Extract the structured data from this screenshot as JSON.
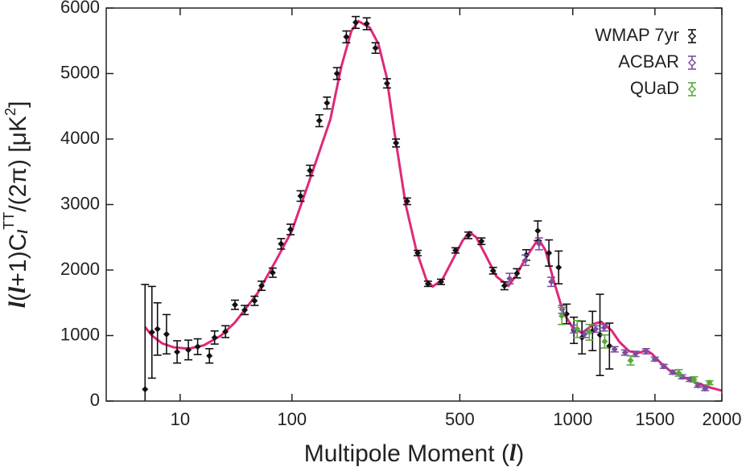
{
  "chart_data": {
    "type": "scatter",
    "xlabel": [
      "Multipole Moment (",
      "l",
      ")"
    ],
    "ylabel": [
      "l",
      "(",
      "l",
      "+1)C",
      "l",
      "TT",
      "/(2π) [μK",
      "2",
      "]"
    ],
    "xscale": "power",
    "xexponent": 0.4,
    "xlim": [
      0,
      2000
    ],
    "ylim": [
      0,
      6000
    ],
    "xticks": [
      10,
      100,
      500,
      1000,
      1500,
      2000
    ],
    "yticks": [
      0,
      1000,
      2000,
      3000,
      4000,
      5000,
      6000
    ],
    "legend": "top-right",
    "series": [
      {
        "name": "WMAP 7yr",
        "color": "#111111",
        "x": [
          2,
          3,
          4,
          6,
          9,
          13,
          17,
          23,
          26,
          33,
          40,
          48,
          57,
          64,
          76,
          86,
          98,
          112,
          126,
          141,
          154,
          172,
          190,
          209,
          233,
          253,
          281,
          304,
          334,
          364,
          395,
          436,
          485,
          531,
          580,
          626,
          673,
          727,
          769,
          823,
          877,
          926,
          967,
          1006,
          1050,
          1109,
          1152,
          1208
        ],
        "values": [
          180,
          1050,
          1100,
          1020,
          750,
          780,
          830,
          690,
          970,
          1060,
          1470,
          1390,
          1530,
          1760,
          1960,
          2400,
          2620,
          3130,
          3520,
          4280,
          4550,
          5000,
          5560,
          5780,
          5760,
          5390,
          4850,
          3940,
          3050,
          2260,
          1790,
          1820,
          2300,
          2530,
          2440,
          1990,
          1760,
          1950,
          2230,
          2600,
          2260,
          2040,
          1330,
          1080,
          970,
          1070,
          1010,
          840
        ],
        "errors": [
          1600,
          700,
          400,
          300,
          170,
          150,
          120,
          110,
          100,
          90,
          70,
          70,
          70,
          70,
          70,
          80,
          80,
          80,
          80,
          90,
          90,
          90,
          90,
          90,
          90,
          80,
          70,
          60,
          50,
          40,
          40,
          40,
          40,
          50,
          50,
          50,
          60,
          70,
          80,
          150,
          200,
          250,
          150,
          200,
          250,
          300,
          620,
          350
        ]
      },
      {
        "name": "ACBAR",
        "color": "#7b4fa0",
        "x": [
          695,
          766,
          829,
          889,
          944,
          1006,
          1064,
          1127,
          1176,
          1239,
          1304,
          1371,
          1440,
          1499,
          1561,
          1624,
          1692,
          1750,
          1811,
          1867
        ],
        "values": [
          1870,
          2150,
          2400,
          1820,
          1400,
          1100,
          1020,
          1100,
          1120,
          790,
          740,
          720,
          760,
          640,
          530,
          440,
          370,
          330,
          240,
          190
        ],
        "errors": [
          80,
          80,
          90,
          70,
          60,
          60,
          50,
          50,
          50,
          40,
          40,
          40,
          40,
          30,
          30,
          30,
          30,
          30,
          30,
          30
        ]
      },
      {
        "name": "QUaD",
        "color": "#5aaa3a",
        "x": [
          942,
          1024,
          1091,
          1180,
          1339,
          1668,
          1782,
          1901
        ],
        "values": [
          1300,
          1100,
          1050,
          910,
          620,
          430,
          330,
          280
        ],
        "errors": [
          130,
          130,
          120,
          100,
          70,
          50,
          40,
          30
        ]
      }
    ],
    "model": {
      "color": "#e0287a",
      "x": [
        2,
        3,
        5,
        8,
        13,
        20,
        30,
        40,
        60,
        80,
        100,
        130,
        160,
        180,
        200,
        215,
        240,
        260,
        280,
        300,
        330,
        360,
        390,
        410,
        440,
        480,
        510,
        535,
        560,
        600,
        640,
        690,
        720,
        770,
        826,
        860,
        900,
        950,
        1000,
        1050,
        1120,
        1160,
        1220,
        1270,
        1330,
        1400,
        1440,
        1480,
        1540,
        1600,
        1700,
        1800,
        1900,
        2000
      ],
      "values": [
        1130,
        1000,
        880,
        820,
        800,
        850,
        1000,
        1200,
        1650,
        2150,
        2600,
        3500,
        4300,
        5100,
        5650,
        5800,
        5700,
        5450,
        4950,
        4100,
        3000,
        2300,
        1850,
        1750,
        1850,
        2200,
        2450,
        2580,
        2500,
        2200,
        1900,
        1760,
        1900,
        2200,
        2480,
        2300,
        1850,
        1350,
        1120,
        1040,
        1180,
        1210,
        1080,
        900,
        760,
        740,
        780,
        720,
        580,
        470,
        370,
        280,
        210,
        160
      ]
    }
  }
}
